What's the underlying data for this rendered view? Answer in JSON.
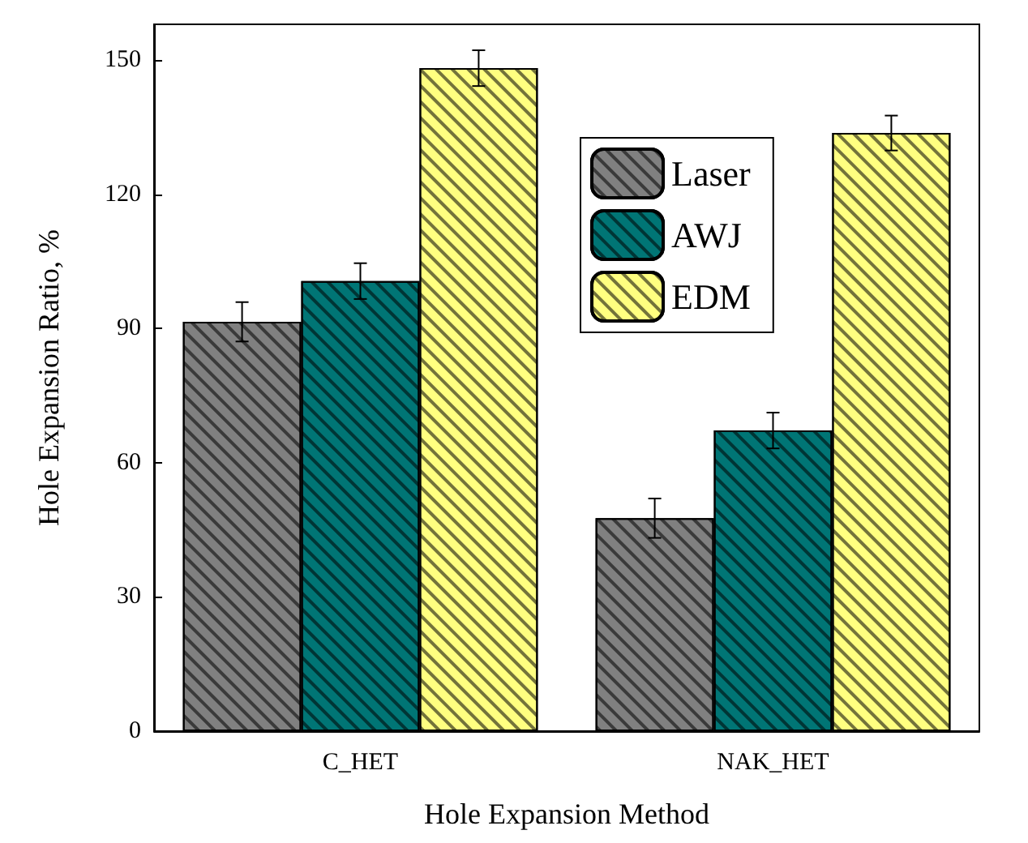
{
  "chart_data": {
    "type": "bar",
    "xlabel": "Hole Expansion Method",
    "ylabel": "Hole Expansion Ratio, %",
    "categories": [
      "C_HET",
      "NAK_HET"
    ],
    "series": [
      {
        "name": "Laser",
        "color": "#808080",
        "values": [
          91.5,
          47.6
        ],
        "errors": [
          4.4,
          4.4
        ]
      },
      {
        "name": "AWJ",
        "color": "#007575",
        "values": [
          100.6,
          67.2
        ],
        "errors": [
          4,
          4
        ]
      },
      {
        "name": "EDM",
        "color": "#ffff80",
        "values": [
          148.2,
          133.7
        ],
        "errors": [
          4,
          3.9
        ]
      }
    ],
    "ylim": [
      0,
      158
    ],
    "yticks": [
      0,
      30,
      60,
      90,
      120,
      150
    ],
    "legend": "top right",
    "grid": false
  }
}
